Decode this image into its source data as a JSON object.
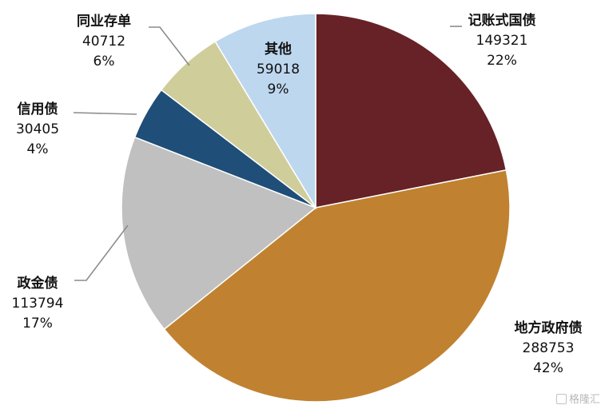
{
  "chart_data": {
    "type": "pie",
    "title": "",
    "slices": [
      {
        "name": "记账式国债",
        "value": 149321,
        "percent": "22%",
        "color": "#662226"
      },
      {
        "name": "地方政府债",
        "value": 288753,
        "percent": "42%",
        "color": "#c08230"
      },
      {
        "name": "政金债",
        "value": 113794,
        "percent": "17%",
        "color": "#c0c0c0"
      },
      {
        "name": "信用债",
        "value": 30405,
        "percent": "4%",
        "color": "#1f4e78"
      },
      {
        "name": "同业存单",
        "value": 40712,
        "percent": "6%",
        "color": "#cfcd9a"
      },
      {
        "name": "其他",
        "value": 59018,
        "percent": "9%",
        "color": "#bdd7ee"
      }
    ]
  },
  "watermark": {
    "text": "格隆汇"
  }
}
